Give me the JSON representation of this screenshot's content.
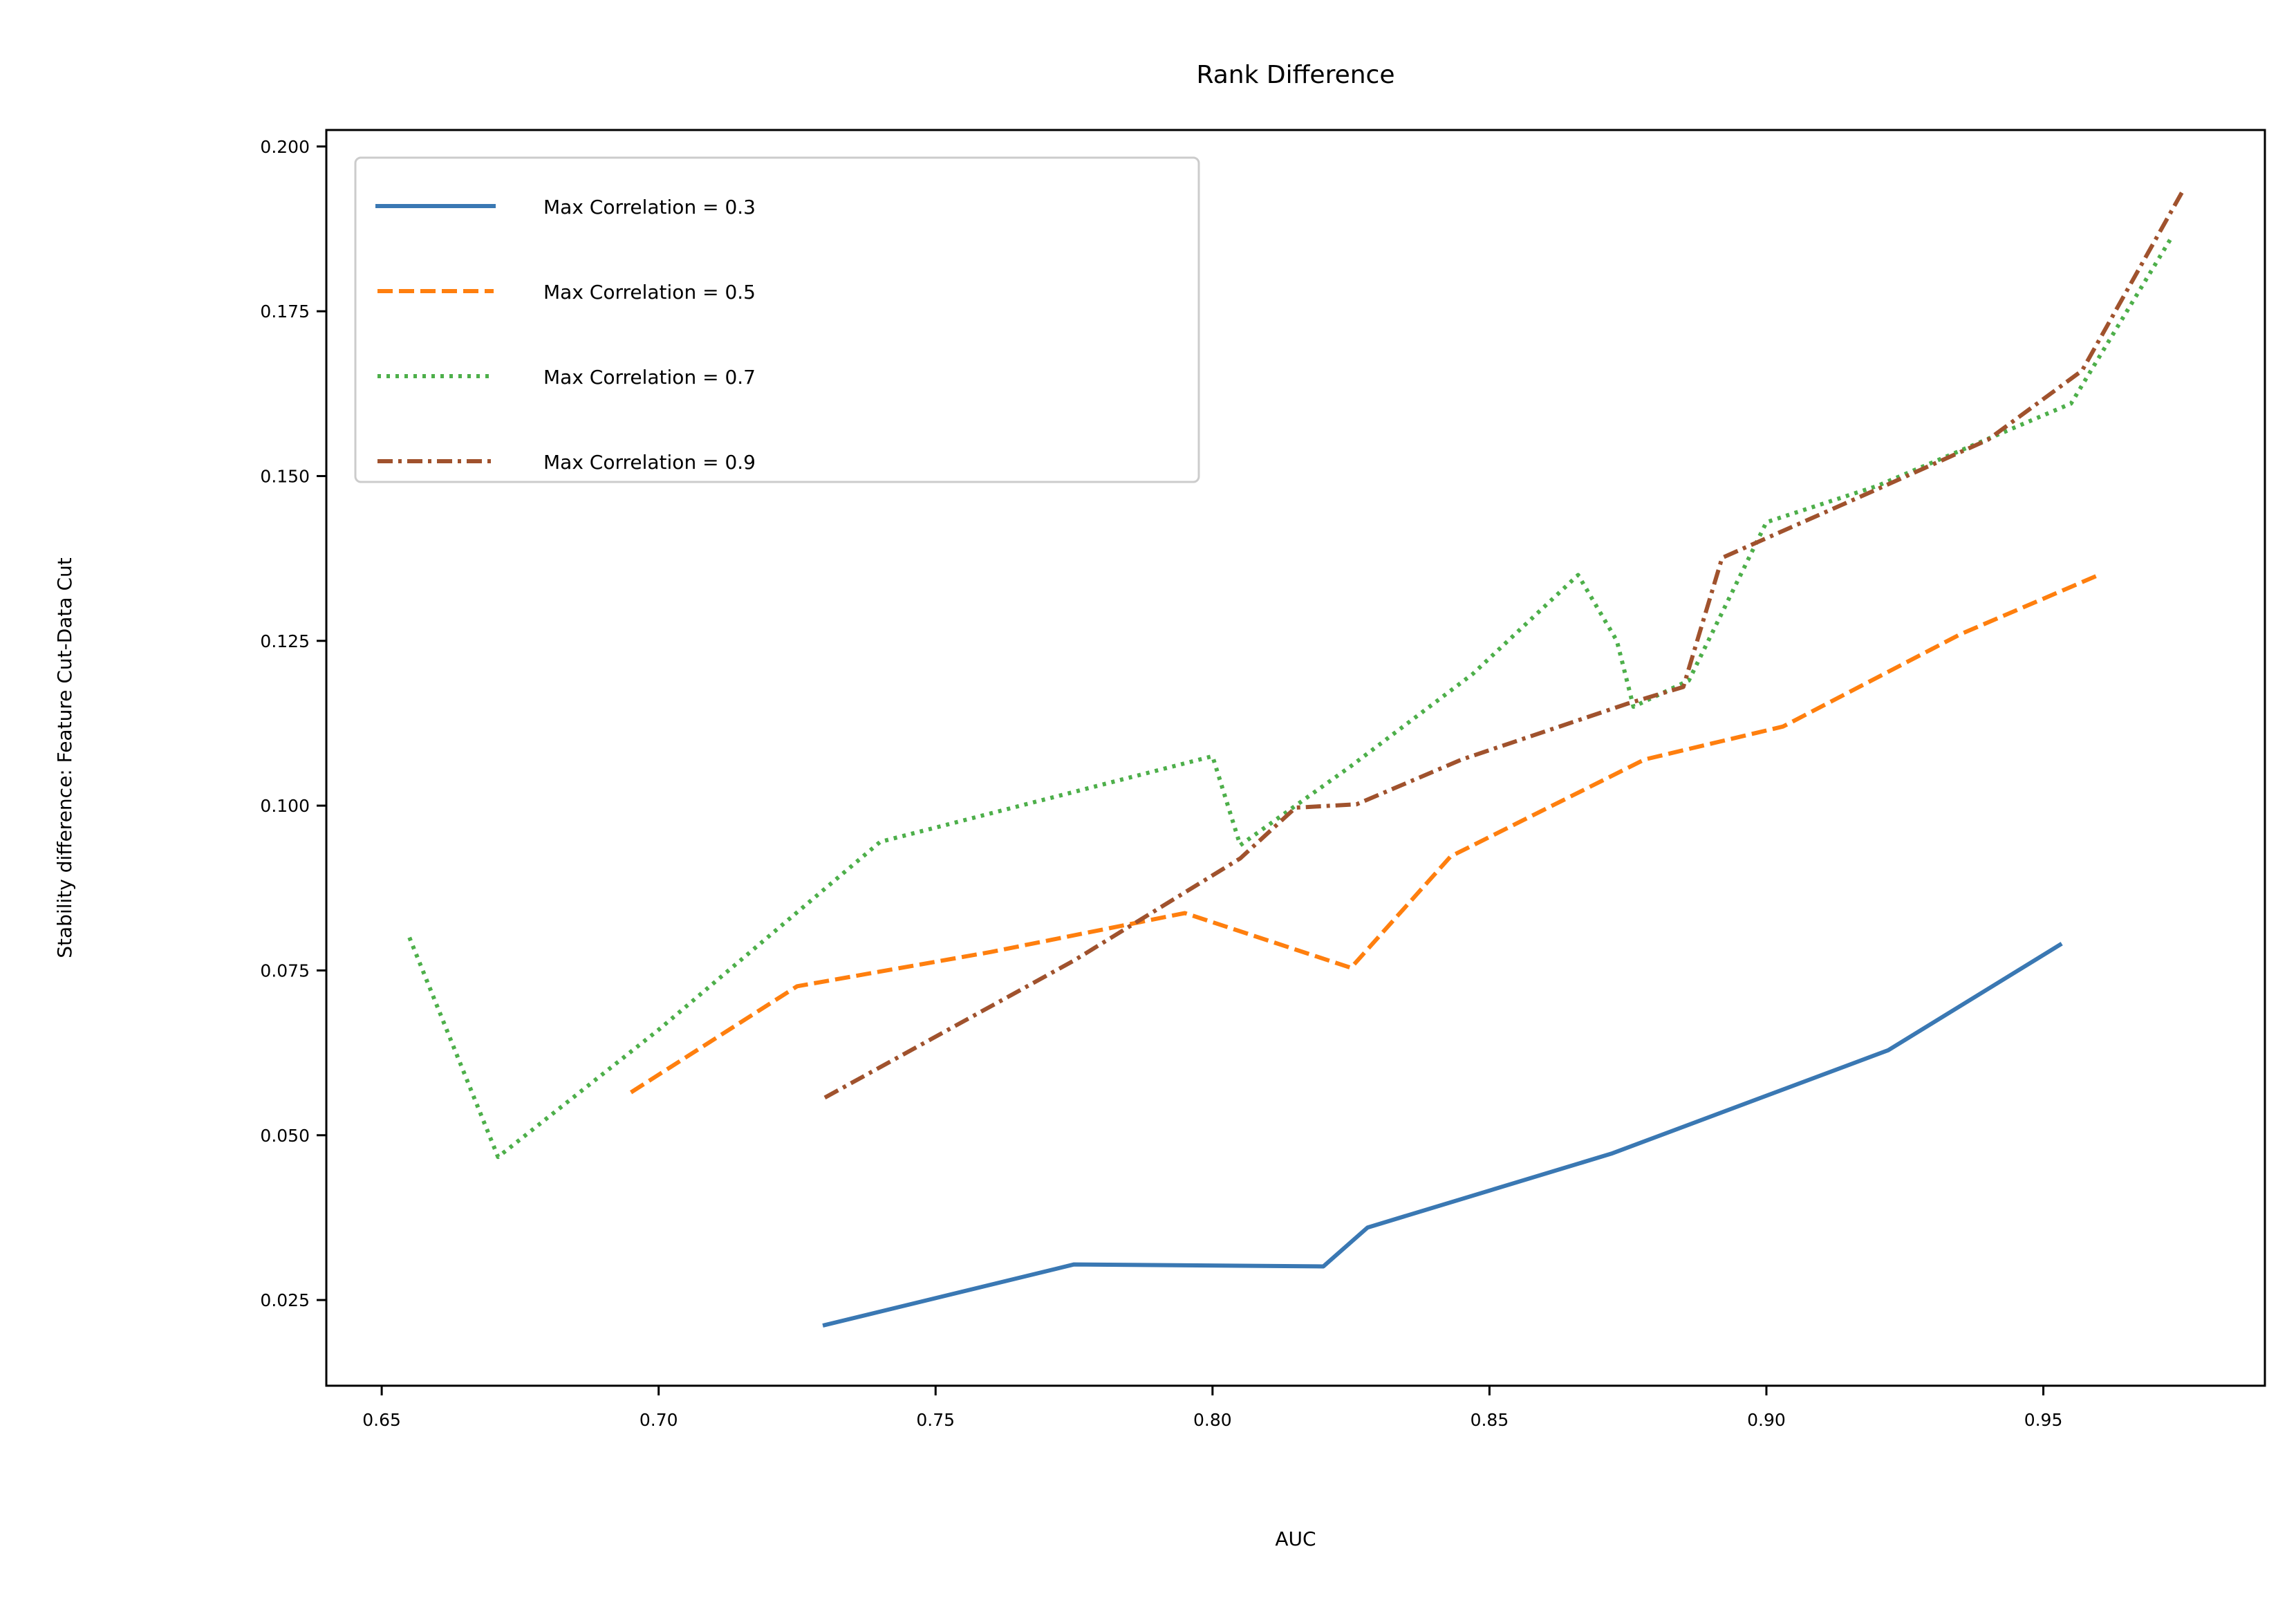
{
  "chart_data": {
    "type": "line",
    "title": "Rank Difference",
    "xlabel": "AUC",
    "ylabel": "Stability difference: Feature Cut-Data Cut",
    "xlim": [
      0.64,
      0.99
    ],
    "ylim": [
      0.012,
      0.2025
    ],
    "xticks": [
      0.65,
      0.7,
      0.75,
      0.8,
      0.85,
      0.9,
      0.95
    ],
    "xtick_labels": [
      "0.65",
      "0.70",
      "0.75",
      "0.80",
      "0.85",
      "0.90",
      "0.95"
    ],
    "yticks": [
      0.025,
      0.05,
      0.075,
      0.1,
      0.125,
      0.15,
      0.175,
      0.2
    ],
    "ytick_labels": [
      "0.025",
      "0.050",
      "0.075",
      "0.100",
      "0.125",
      "0.150",
      "0.175",
      "0.200"
    ],
    "grid": false,
    "legend_position": "top-left",
    "series": [
      {
        "name": "Max Correlation = 0.3",
        "color": "#3a78b3",
        "dash": "solid",
        "x": [
          0.73,
          0.775,
          0.82,
          0.828,
          0.872,
          0.922,
          0.953
        ],
        "y": [
          0.0212,
          0.0304,
          0.0301,
          0.036,
          0.0472,
          0.0629,
          0.0789
        ]
      },
      {
        "name": "Max Correlation = 0.5",
        "color": "#ff7f0e",
        "dash": "dashed",
        "x": [
          0.695,
          0.725,
          0.76,
          0.795,
          0.825,
          0.843,
          0.878,
          0.903,
          0.935,
          0.96
        ],
        "y": [
          0.0565,
          0.0726,
          0.0778,
          0.0837,
          0.0754,
          0.0923,
          0.107,
          0.112,
          0.126,
          0.135
        ]
      },
      {
        "name": "Max Correlation = 0.7",
        "color": "#4daf4a",
        "dash": "dotted",
        "x": [
          0.655,
          0.671,
          0.7,
          0.74,
          0.8,
          0.805,
          0.825,
          0.847,
          0.866,
          0.873,
          0.876,
          0.886,
          0.9,
          0.92,
          0.955,
          0.973
        ],
        "y": [
          0.08,
          0.0467,
          0.066,
          0.0945,
          0.1075,
          0.094,
          0.106,
          0.12,
          0.135,
          0.125,
          0.115,
          0.119,
          0.143,
          0.1485,
          0.161,
          0.186
        ]
      },
      {
        "name": "Max Correlation = 0.9",
        "color": "#a0522d",
        "dash": "dashdot",
        "x": [
          0.73,
          0.775,
          0.805,
          0.815,
          0.826,
          0.845,
          0.875,
          0.885,
          0.892,
          0.92,
          0.94,
          0.957,
          0.975
        ],
        "y": [
          0.0557,
          0.0765,
          0.092,
          0.0997,
          0.1002,
          0.107,
          0.1155,
          0.118,
          0.1376,
          0.148,
          0.1555,
          0.166,
          0.193
        ]
      }
    ]
  }
}
